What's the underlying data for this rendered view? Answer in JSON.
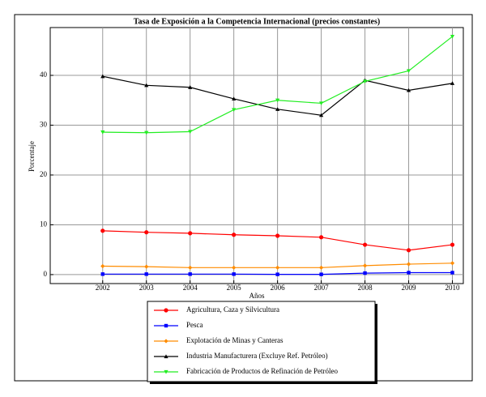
{
  "chart_data": {
    "type": "line",
    "title": "Tasa de Exposición a la Competencia Internacional (precios constantes)",
    "x_label": "Años",
    "y_label": "Porcentaje",
    "x": [
      2002,
      2003,
      2004,
      2005,
      2006,
      2007,
      2008,
      2009,
      2010
    ],
    "xlim": [
      2000.8,
      2010.25
    ],
    "xticks": [
      2002,
      2003,
      2004,
      2005,
      2006,
      2007,
      2008,
      2009,
      2010
    ],
    "ylim": [
      -1.8,
      49.6
    ],
    "yticks": [
      0,
      10,
      20,
      30,
      40
    ],
    "grid": true,
    "legend": "bottom",
    "series": [
      {
        "name": "Agricultura, Caza y Silvicultura",
        "color": "#ff0000",
        "marker": "circle",
        "values": [
          8.8,
          8.5,
          8.3,
          8.0,
          7.8,
          7.5,
          6.0,
          4.9,
          6.0
        ]
      },
      {
        "name": "Pesca",
        "color": "#0000ff",
        "marker": "square",
        "values": [
          0.1,
          0.1,
          0.1,
          0.1,
          0.05,
          0.05,
          0.3,
          0.4,
          0.4
        ]
      },
      {
        "name": "Explotación de Minas y Canteras",
        "color": "#ff8c00",
        "marker": "diamond",
        "values": [
          1.7,
          1.6,
          1.4,
          1.4,
          1.4,
          1.4,
          1.8,
          2.1,
          2.3
        ]
      },
      {
        "name": "Industria Manufacturera (Excluye Ref. Petróleo)",
        "color": "#000000",
        "marker": "triangle-up",
        "values": [
          39.8,
          38.0,
          37.6,
          35.3,
          33.2,
          32.0,
          39.0,
          37.0,
          38.4
        ]
      },
      {
        "name": "Fabricación de Productos de Refinación de Petróleo",
        "color": "#22ee22",
        "marker": "triangle-down",
        "values": [
          28.6,
          28.5,
          28.7,
          33.1,
          35.0,
          34.4,
          38.8,
          40.9,
          47.8
        ]
      }
    ]
  }
}
